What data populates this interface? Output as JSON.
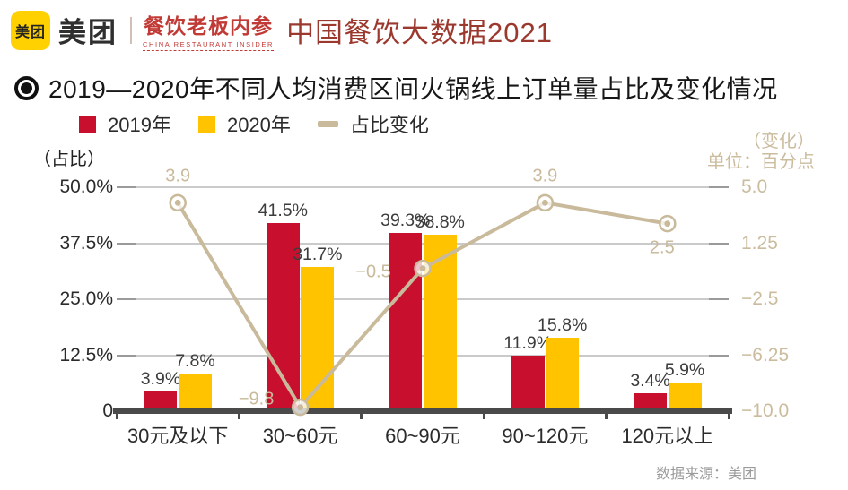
{
  "header": {
    "logo_text": "美团",
    "wordmark": "美团",
    "brand_name": "餐饮老板内参",
    "brand_subtext": "CHINA RESTAURANT INSIDER",
    "page_title": "中国餐饮大数据2021"
  },
  "section": {
    "title": "2019—2020年不同人均消费区间火锅线上订单量占比及变化情况"
  },
  "legend": [
    {
      "label": "2019年",
      "color": "#C8102E",
      "type": "square"
    },
    {
      "label": "2020年",
      "color": "#FFC300",
      "type": "square"
    },
    {
      "label": "占比变化",
      "color": "#C9BA9B",
      "type": "line"
    }
  ],
  "chart_data": {
    "type": "bar",
    "subtype": "grouped bars + change line on secondary axis",
    "title": "2019—2020年不同人均消费区间火锅线上订单量占比及变化情况",
    "categories": [
      "30元及以下",
      "30~60元",
      "60~90元",
      "90~120元",
      "120元以上"
    ],
    "series": [
      {
        "name": "2019年",
        "type": "bar",
        "color": "#C8102E",
        "axis": "left",
        "values": [
          3.9,
          41.5,
          39.3,
          11.9,
          3.4
        ]
      },
      {
        "name": "2020年",
        "type": "bar",
        "color": "#FFC300",
        "axis": "left",
        "values": [
          7.8,
          31.7,
          38.8,
          15.8,
          5.9
        ]
      },
      {
        "name": "占比变化",
        "type": "line",
        "color": "#C9BA9B",
        "axis": "right",
        "values": [
          3.9,
          -9.8,
          -0.5,
          3.9,
          2.5
        ]
      }
    ],
    "bar_labels": [
      [
        "3.9%",
        "41.5%",
        "39.3%",
        "11.9%",
        "3.4%"
      ],
      [
        "7.8%",
        "31.7%",
        "38.8%",
        "15.8%",
        "5.9%"
      ]
    ],
    "line_labels": [
      "3.9",
      "−9.8",
      "−0.5",
      "3.9",
      "2.5"
    ],
    "left_axis": {
      "caption": "（占比）",
      "ticks": [
        "50.0%",
        "37.5%",
        "25.0%",
        "12.5%",
        "0"
      ],
      "range": [
        0,
        50
      ]
    },
    "right_axis": {
      "caption_line1": "（变化）",
      "caption_line2": "单位：百分点",
      "ticks": [
        "5.0",
        "1.25",
        "−2.5",
        "−6.25",
        "−10.0"
      ],
      "range": [
        -10,
        5
      ]
    },
    "grid": true,
    "legend_position": "top-left"
  },
  "footer": {
    "source": "数据来源：美团"
  }
}
